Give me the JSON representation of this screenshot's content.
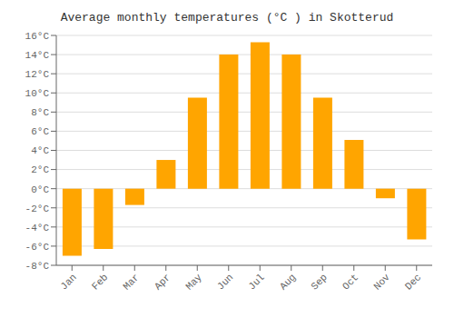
{
  "chart_data": {
    "type": "bar",
    "title": "Average monthly temperatures (°C ) in Skotterud",
    "categories": [
      "Jan",
      "Feb",
      "Mar",
      "Apr",
      "May",
      "Jun",
      "Jul",
      "Aug",
      "Sep",
      "Oct",
      "Nov",
      "Dec"
    ],
    "values": [
      -7.0,
      -6.3,
      -1.7,
      3.0,
      9.5,
      14.0,
      15.3,
      14.0,
      9.5,
      5.1,
      -1.0,
      -5.3
    ],
    "color": "#FFA500",
    "ylim": [
      -8,
      16
    ],
    "yticks": [
      {
        "value": -8,
        "label": "-8°C"
      },
      {
        "value": -6,
        "label": "-6°C"
      },
      {
        "value": -4,
        "label": "-4°C"
      },
      {
        "value": -2,
        "label": "-2°C"
      },
      {
        "value": 0,
        "label": "0°C"
      },
      {
        "value": 2,
        "label": "2°C"
      },
      {
        "value": 4,
        "label": "4°C"
      },
      {
        "value": 6,
        "label": "6°C"
      },
      {
        "value": 8,
        "label": "8°C"
      },
      {
        "value": 10,
        "label": "10°C"
      },
      {
        "value": 12,
        "label": "12°C"
      },
      {
        "value": 14,
        "label": "14°C"
      },
      {
        "value": 16,
        "label": "16°C"
      }
    ],
    "grid": true
  }
}
